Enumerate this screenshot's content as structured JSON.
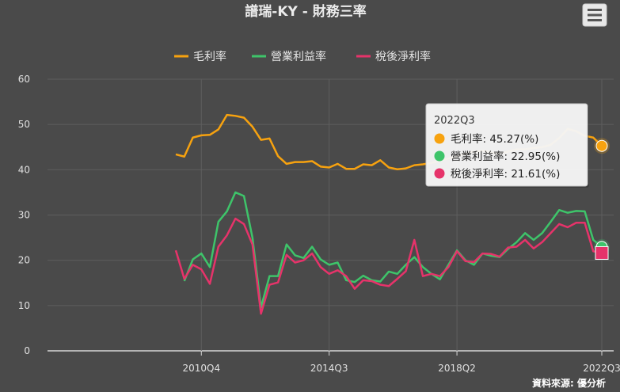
{
  "menu_icon": "hamburger-menu-icon",
  "credit": "資料來源: 優分析",
  "chart_data": {
    "type": "line",
    "title": "譜瑞-KY - 財務三率",
    "xlabel": "",
    "ylabel": "",
    "ylim": [
      0,
      60
    ],
    "yticks": [
      0,
      10,
      20,
      30,
      40,
      50,
      60
    ],
    "xtick_labels": [
      "2010Q4",
      "2014Q3",
      "2018Q2",
      "2022Q3"
    ],
    "grid": true,
    "legend_position": "top",
    "x": [
      "2010Q1",
      "2010Q2",
      "2010Q3",
      "2010Q4",
      "2011Q1",
      "2011Q2",
      "2011Q3",
      "2011Q4",
      "2012Q1",
      "2012Q2",
      "2012Q3",
      "2012Q4",
      "2013Q1",
      "2013Q2",
      "2013Q3",
      "2013Q4",
      "2014Q1",
      "2014Q2",
      "2014Q3",
      "2014Q4",
      "2015Q1",
      "2015Q2",
      "2015Q3",
      "2015Q4",
      "2016Q1",
      "2016Q2",
      "2016Q3",
      "2016Q4",
      "2017Q1",
      "2017Q2",
      "2017Q3",
      "2017Q4",
      "2018Q1",
      "2018Q2",
      "2018Q3",
      "2018Q4",
      "2019Q1",
      "2019Q2",
      "2019Q3",
      "2019Q4",
      "2020Q1",
      "2020Q2",
      "2020Q3",
      "2020Q4",
      "2021Q1",
      "2021Q2",
      "2021Q3",
      "2021Q4",
      "2022Q1",
      "2022Q2",
      "2022Q3"
    ],
    "series": [
      {
        "name": "毛利率",
        "color": "#f7a20f",
        "marker": "circle",
        "values": [
          43.4,
          42.9,
          47.1,
          47.6,
          47.7,
          48.9,
          52.1,
          51.9,
          51.5,
          49.5,
          46.6,
          46.9,
          43.0,
          41.3,
          41.7,
          41.7,
          41.9,
          40.7,
          40.5,
          41.3,
          40.2,
          40.2,
          41.2,
          41.0,
          42.1,
          40.5,
          40.1,
          40.3,
          41.0,
          41.2,
          41.5,
          42.0,
          42.5,
          43.0,
          43.5,
          44.0,
          44.2,
          43.8,
          43.5,
          44.0,
          44.5,
          44.5,
          44.8,
          45.0,
          45.5,
          47.0,
          49.0,
          48.5,
          47.5,
          47.1,
          45.27
        ]
      },
      {
        "name": "營業利益率",
        "color": "#3ec46a",
        "marker": "circle",
        "values": [
          null,
          15.4,
          20.2,
          21.5,
          18.5,
          28.5,
          30.8,
          35.0,
          34.2,
          25.0,
          9.6,
          16.5,
          16.5,
          23.5,
          21.1,
          20.5,
          23.0,
          20.2,
          19.0,
          19.5,
          15.6,
          15.2,
          16.6,
          15.6,
          15.3,
          17.5,
          17.0,
          19.0,
          20.7,
          18.5,
          17.0,
          15.8,
          19.0,
          22.2,
          20.0,
          19.0,
          21.5,
          21.0,
          20.7,
          22.5,
          24.0,
          26.0,
          24.5,
          26.0,
          28.5,
          31.1,
          30.5,
          30.9,
          30.8,
          24.5,
          22.95
        ]
      },
      {
        "name": "稅後淨利率",
        "color": "#e6336a",
        "marker": "square",
        "values": [
          22.2,
          15.9,
          19.0,
          18.0,
          14.8,
          23.0,
          25.5,
          29.2,
          28.0,
          23.5,
          8.2,
          14.6,
          15.1,
          21.2,
          19.5,
          20.0,
          21.5,
          18.5,
          17.0,
          17.8,
          16.5,
          13.7,
          15.6,
          15.4,
          14.6,
          14.3,
          15.9,
          17.6,
          24.5,
          16.5,
          17.0,
          16.5,
          18.5,
          22.0,
          19.8,
          19.6,
          21.5,
          21.4,
          20.8,
          22.8,
          23.0,
          24.5,
          22.6,
          24.0,
          26.0,
          28.0,
          27.3,
          28.3,
          28.3,
          22.0,
          21.61
        ]
      }
    ],
    "tooltip": {
      "title": "2022Q3",
      "lines": [
        "毛利率: 45.27(%)",
        "營業利益率: 22.95(%)",
        "稅後淨利率: 21.61(%)"
      ]
    }
  }
}
